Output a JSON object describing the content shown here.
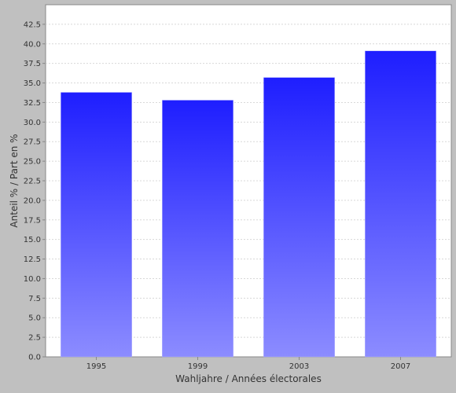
{
  "chart_data": {
    "type": "bar",
    "categories": [
      "1995",
      "1999",
      "2003",
      "2007"
    ],
    "values": [
      33.8,
      32.8,
      35.7,
      39.1
    ],
    "title": "",
    "xlabel": "Wahljahre / Années électorales",
    "ylabel": "Anteil % / Part en %",
    "ylim": [
      0,
      45
    ],
    "yticks": [
      "0.0",
      "2.5",
      "5.0",
      "7.5",
      "10.0",
      "12.5",
      "15.0",
      "17.5",
      "20.0",
      "22.5",
      "25.0",
      "27.5",
      "30.0",
      "32.5",
      "35.0",
      "37.5",
      "40.0",
      "42.5"
    ],
    "grid": true,
    "legend": "none",
    "colors": {
      "bar_top": "#1e1eff",
      "bar_bottom": "#8c8cff",
      "plot_background": "#ffffff",
      "outer_background": "#c0c0c0",
      "gridline": "#d8d8d8"
    }
  }
}
